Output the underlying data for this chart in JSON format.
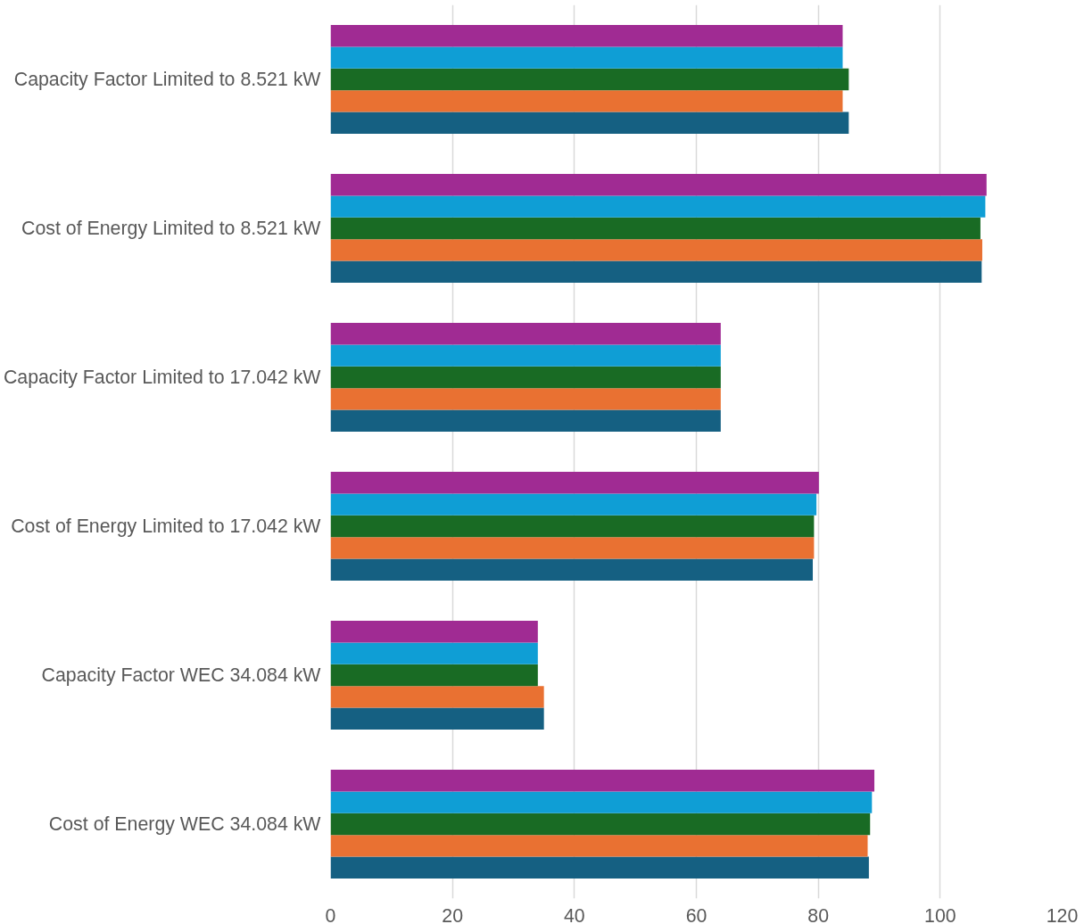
{
  "chart_data": {
    "type": "bar",
    "orientation": "horizontal",
    "categories": [
      "Capacity Factor Limited to 8.521 kW",
      "Cost of Energy Limited to 8.521 kW",
      "Capacity Factor Limited to 17.042 kW",
      "Cost of Energy Limited to 17.042 kW",
      "Capacity Factor WEC 34.084 kW",
      "Cost of Energy WEC 34.084 kW"
    ],
    "series": [
      {
        "color": "#156082",
        "values": [
          85,
          106.8,
          64,
          79.1,
          35,
          88.3
        ]
      },
      {
        "color": "#e97132",
        "values": [
          84,
          106.9,
          64,
          79.3,
          35,
          88.1
        ]
      },
      {
        "color": "#196b24",
        "values": [
          85,
          106.6,
          64,
          79.3,
          34,
          88.5
        ]
      },
      {
        "color": "#0f9ed5",
        "values": [
          84,
          107.4,
          64,
          79.7,
          34,
          88.8
        ]
      },
      {
        "color": "#a02b93",
        "values": [
          84,
          107.6,
          64,
          80.1,
          34,
          89.2
        ]
      }
    ],
    "xlim": [
      0,
      120
    ],
    "xticks": [
      0,
      20,
      40,
      60,
      80,
      100,
      120
    ],
    "grid": "x"
  }
}
